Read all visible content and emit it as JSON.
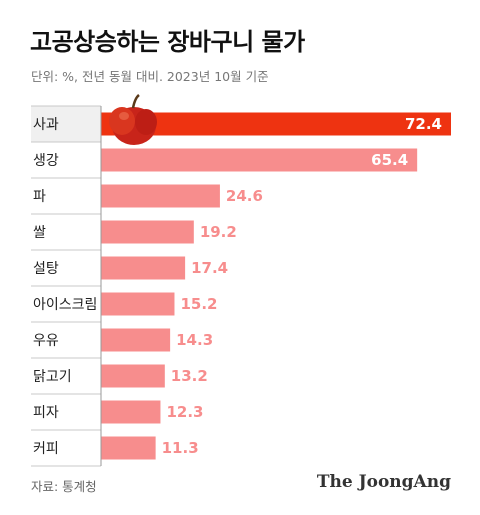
{
  "title": "고공상승하는 장바구니 물가",
  "subtitle": "단위: %, 전년 동월 대비. 2023년 10월 기준",
  "source": "자료: 통계청",
  "brand": "The JoongAng",
  "colors": {
    "highlight": "#ee3311",
    "bar": "#f78d8d",
    "row_band": "#f0f0f0",
    "divider": "#c8c8c8",
    "axis": "#999999"
  },
  "chart_data": {
    "type": "bar",
    "orientation": "horizontal",
    "categories": [
      "사과",
      "생강",
      "파",
      "쌀",
      "설탕",
      "아이스크림",
      "우유",
      "닭고기",
      "피자",
      "커피"
    ],
    "values": [
      72.4,
      65.4,
      24.6,
      19.2,
      17.4,
      15.2,
      14.3,
      13.2,
      12.3,
      11.3
    ],
    "value_labels": [
      "72.4",
      "65.4",
      "24.6",
      "19.2",
      "17.4",
      "15.2",
      "14.3",
      "13.2",
      "12.3",
      "11.3"
    ],
    "highlight_index": 0,
    "xlim": [
      0,
      72.4
    ],
    "grid": false,
    "legend": "none"
  }
}
